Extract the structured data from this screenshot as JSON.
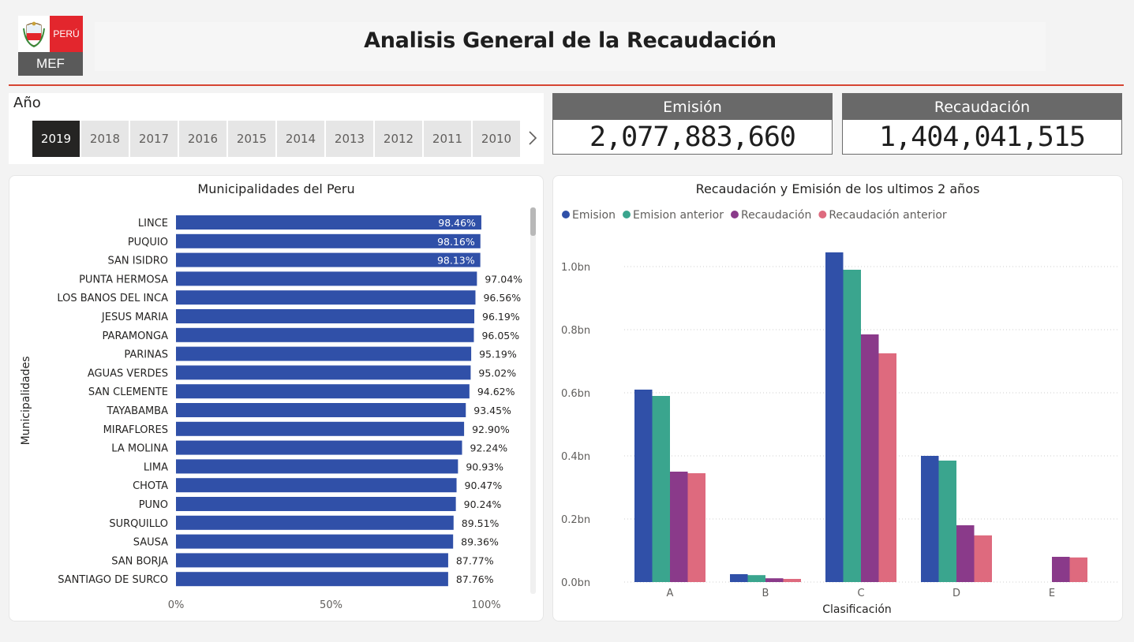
{
  "header": {
    "title": "Analisis General de la Recaudación",
    "logo": {
      "badge_text": "PERÚ",
      "org_text": "MEF",
      "crest_icon": "peru-coat-of-arms-icon"
    }
  },
  "year_slicer": {
    "title": "Año",
    "years": [
      "2019",
      "2018",
      "2017",
      "2016",
      "2015",
      "2014",
      "2013",
      "2012",
      "2011",
      "2010"
    ],
    "selected": "2019",
    "next_icon": "chevron-right-icon"
  },
  "kpis": {
    "emision": {
      "label": "Emisión",
      "value": "2,077,883,660"
    },
    "recaudacion": {
      "label": "Recaudación",
      "value": "1,404,041,515"
    }
  },
  "colors": {
    "accent_red": "#d64532",
    "bar_blue": "#3050a8",
    "emision": "#3050a8",
    "emision_anterior": "#3aa58e",
    "recaudacion": "#8a3a8a",
    "recaudacion_anterior": "#de6a7e"
  },
  "chart_data": [
    {
      "type": "bar",
      "orientation": "horizontal",
      "title": "Municipalidades del Peru",
      "ylabel": "Municipalidades",
      "xlabel": "",
      "xlim": [
        0,
        100
      ],
      "x_ticks": [
        "0%",
        "50%",
        "100%"
      ],
      "categories": [
        "LINCE",
        "PUQUIO",
        "SAN ISIDRO",
        "PUNTA HERMOSA",
        "LOS BANOS DEL INCA",
        "JESUS MARIA",
        "PARAMONGA",
        "PARINAS",
        "AGUAS VERDES",
        "SAN CLEMENTE",
        "TAYABAMBA",
        "MIRAFLORES",
        "LA MOLINA",
        "LIMA",
        "CHOTA",
        "PUNO",
        "SURQUILLO",
        "SAUSA",
        "SAN BORJA",
        "SANTIAGO DE SURCO"
      ],
      "values": [
        98.46,
        98.16,
        98.13,
        97.04,
        96.56,
        96.19,
        96.05,
        95.19,
        95.02,
        94.62,
        93.45,
        92.9,
        92.24,
        90.93,
        90.47,
        90.24,
        89.51,
        89.36,
        87.77,
        87.76
      ],
      "labels": [
        "98.46%",
        "98.16%",
        "98.13%",
        "97.04%",
        "96.56%",
        "96.19%",
        "96.05%",
        "95.19%",
        "95.02%",
        "94.62%",
        "93.45%",
        "92.90%",
        "92.24%",
        "90.93%",
        "90.47%",
        "90.24%",
        "89.51%",
        "89.36%",
        "87.77%",
        "87.76%"
      ],
      "grid": false
    },
    {
      "type": "bar",
      "orientation": "vertical",
      "title": "Recaudación y Emisión de los ultimos 2 años",
      "xlabel": "Clasificación",
      "ylabel": "",
      "ylim": [
        0,
        1.0
      ],
      "y_ticks": [
        "0.0bn",
        "0.2bn",
        "0.4bn",
        "0.6bn",
        "0.8bn",
        "1.0bn"
      ],
      "categories": [
        "A",
        "B",
        "C",
        "D",
        "E"
      ],
      "legend_placement": "top-left",
      "grid": true,
      "series": [
        {
          "name": "Emision",
          "values": [
            0.61,
            0.025,
            1.045,
            0.4,
            0.0
          ]
        },
        {
          "name": "Emision anterior",
          "values": [
            0.59,
            0.022,
            0.99,
            0.385,
            0.0
          ]
        },
        {
          "name": "Recaudación",
          "values": [
            0.35,
            0.012,
            0.785,
            0.18,
            0.08
          ]
        },
        {
          "name": "Recaudación anterior",
          "values": [
            0.345,
            0.01,
            0.725,
            0.148,
            0.078
          ]
        }
      ]
    }
  ]
}
